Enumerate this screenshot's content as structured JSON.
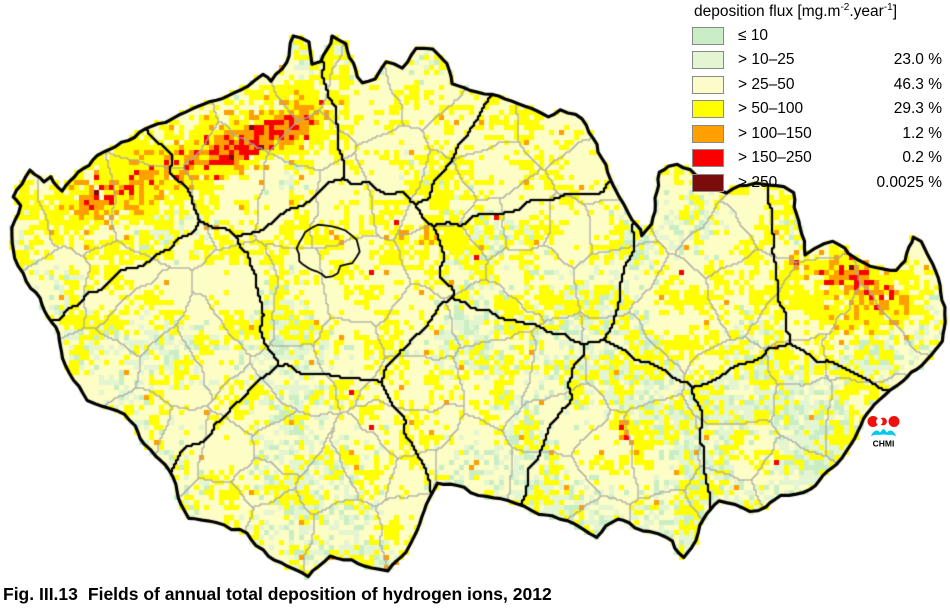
{
  "legend": {
    "title_parts": {
      "t1": "deposition flux [mg.m",
      "s1": "-2",
      "t2": ".year",
      "s2": "-1",
      "t3": "]"
    },
    "rows": [
      {
        "label": "≤ 10",
        "color": "#c9eec6",
        "pct": ""
      },
      {
        "label": "> 10–25",
        "color": "#e4f6d1",
        "pct": "23.0 %"
      },
      {
        "label": "> 25–50",
        "color": "#fbfcca",
        "pct": "46.3 %"
      },
      {
        "label": "> 50–100",
        "color": "#ffff00",
        "pct": "29.3 %"
      },
      {
        "label": "> 100–150",
        "color": "#ff9f00",
        "pct": "1.2 %"
      },
      {
        "label": "> 150–250",
        "color": "#fa0000",
        "pct": "0.2 %"
      },
      {
        "label": "> 250",
        "color": "#7a0c0c",
        "pct": "0.0025 %"
      }
    ]
  },
  "caption": {
    "fig_label": "Fig. III.13",
    "title": "Fields of annual total deposition of hydrogen ions, 2012"
  },
  "logo": {
    "label": "CHMI",
    "red": "#f01010",
    "cyan": "#00c8f0",
    "label_color": "#000000"
  },
  "map": {
    "palette": {
      "green1": "#c9eec6",
      "green2": "#e4f6d1",
      "cream": "#fdfdc6",
      "yellow": "#ffff00",
      "orange": "#ff9f00",
      "red": "#fa0000",
      "darkred": "#7a0c0c"
    },
    "borders": {
      "outline": "#000000",
      "region": "#000000",
      "district": "#a8a8a8"
    },
    "cell_size": 5
  }
}
